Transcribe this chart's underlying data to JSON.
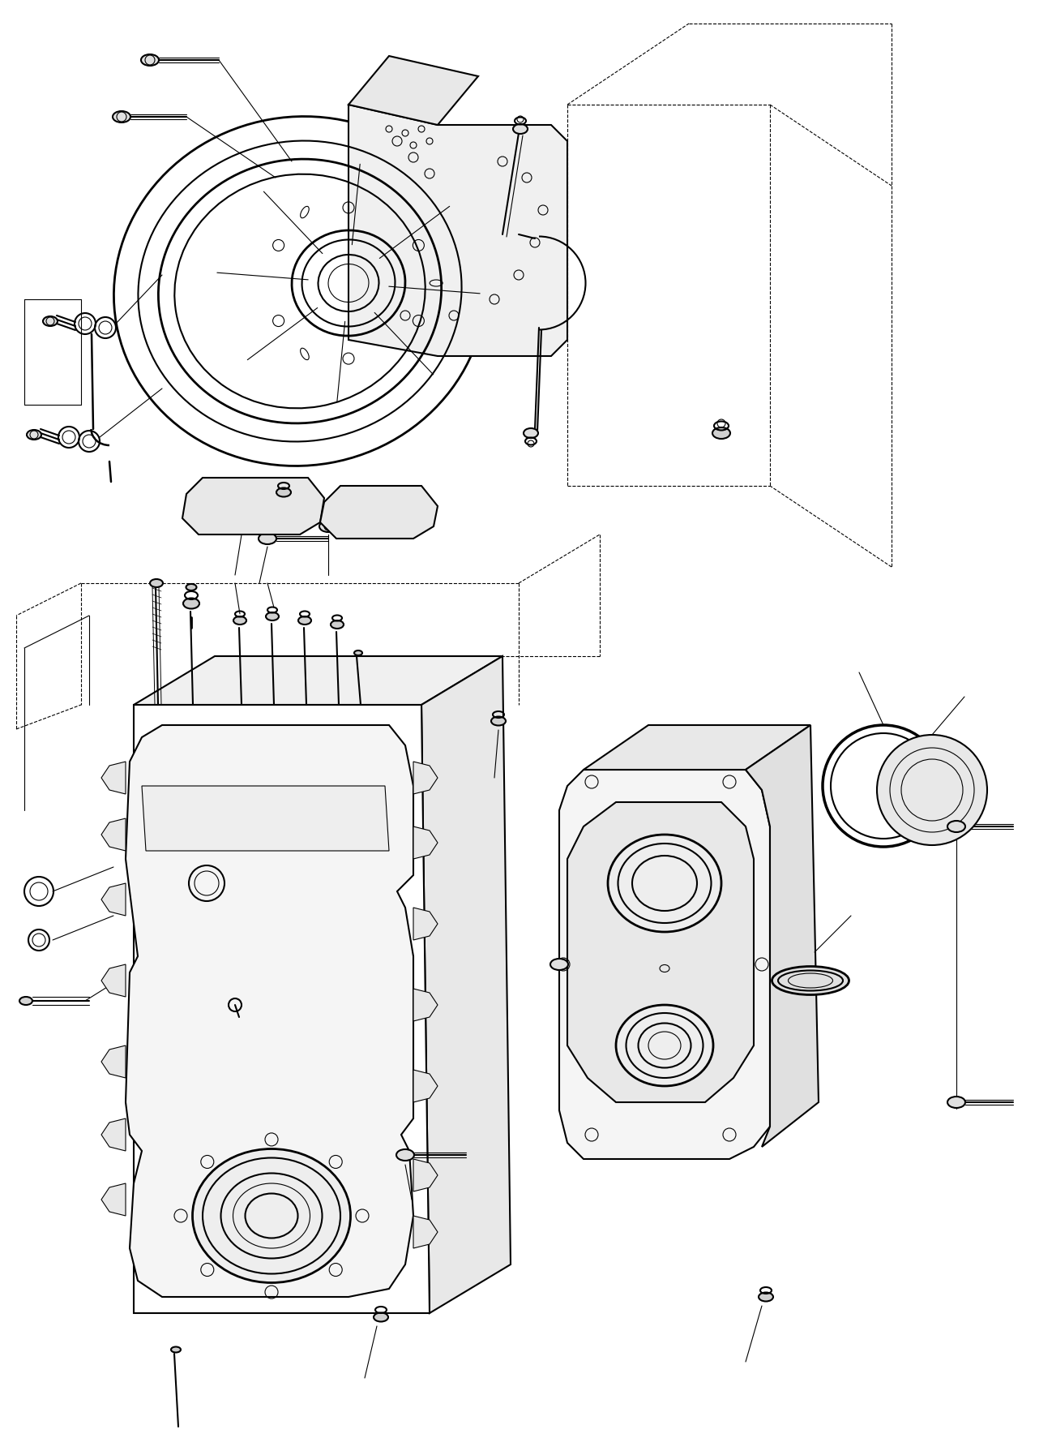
{
  "background_color": "#ffffff",
  "figure_width": 12.98,
  "figure_height": 17.9,
  "dpi": 100,
  "line_color": "#000000",
  "lw_main": 1.5,
  "lw_thin": 0.8,
  "lw_thick": 2.0
}
